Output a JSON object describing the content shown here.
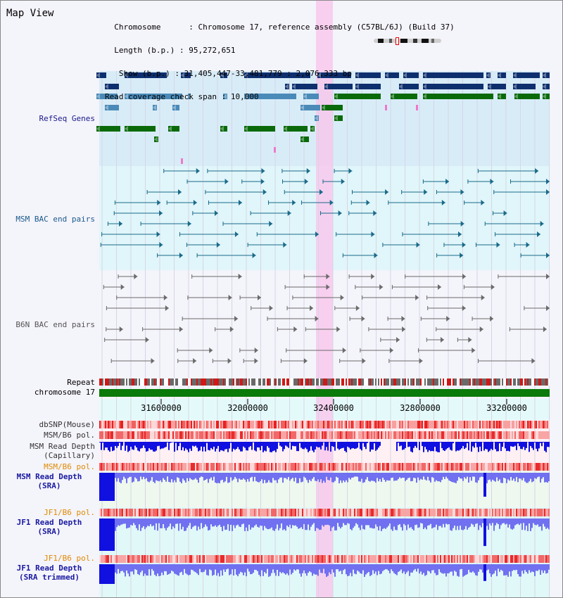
{
  "app": {
    "title": "Map View"
  },
  "info": {
    "chromosome_label": "Chromosome",
    "chromosome_value": "Chromosome 17, reference assembly (C57BL/6J) (Build 37)",
    "length_label": "Length (b.p.)",
    "length_value": "95,272,651",
    "show_label": "Show (b.p.)",
    "show_value": "31,405,447-33,481,779 : 2,076,333 bp",
    "coverage_label": "Read coverage check span",
    "coverage_value": "10,000"
  },
  "tracks": {
    "refseq": "RefSeq Genes",
    "msm_bac": "MSM BAC end pairs",
    "b6n_bac": "B6N BAC end pairs",
    "repeat": "Repeat",
    "chromosome": "chromosome 17"
  },
  "axis": {
    "ticks": [
      "31600000",
      "32000000",
      "32400000",
      "32800000",
      "33200000"
    ]
  },
  "lower": {
    "dbsnp": "dbSNP(Mouse)",
    "msm_b6_pol": "MSM/B6 pol.",
    "msm_depth_cap_1": "MSM Read Depth",
    "msm_depth_cap_2": "(Capillary)",
    "msm_b6_pol_2": "MSM/B6 pol.",
    "msm_depth_sra_1": "MSM Read Depth",
    "msm_depth_sra_2": "(SRA)",
    "jf1_b6_pol": "JF1/B6 pol.",
    "jf1_depth_sra_1": "JF1 Read Depth",
    "jf1_depth_sra_2": "(SRA)",
    "jf1_b6_pol_2": "JF1/B6 pol.",
    "jf1_depth_trim_1": "JF1 Read Depth",
    "jf1_depth_trim_2": "(SRA trimmed)"
  },
  "colors": {
    "gene_dark": "#0e2f6e",
    "gene_mid": "#4a8ab8",
    "gene_green": "#0a6a0a",
    "msm_bac": "#1a6a8a",
    "b6n_bac": "#6a6a6a",
    "highlight": "#f8c8ec",
    "msm_label": "#1a4a9a",
    "orange_label": "#e08a00",
    "depth_blue": "#1010e0",
    "depth_light": "#7070f0"
  }
}
